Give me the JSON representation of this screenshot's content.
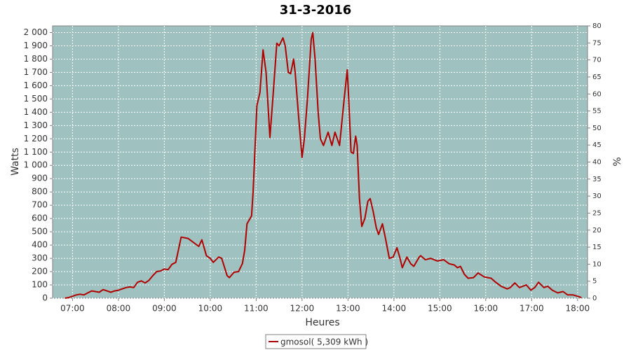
{
  "chart_data": {
    "type": "line",
    "title": "31-3-2016",
    "x_label": "Heures",
    "y_label": "Watts",
    "y2_label": "%",
    "grid": true,
    "xlim": [
      "06:34",
      "18:13"
    ],
    "xticks": [
      "07:00",
      "08:00",
      "09:00",
      "10:00",
      "11:00",
      "12:00",
      "13:00",
      "14:00",
      "15:00",
      "16:00",
      "17:00",
      "18:00"
    ],
    "ylim": [
      0,
      2050
    ],
    "yticks": [
      0,
      100,
      200,
      300,
      400,
      500,
      600,
      700,
      800,
      900,
      {
        "value": 1000,
        "label": "1 000"
      },
      {
        "value": 1100,
        "label": "1 100"
      },
      {
        "value": 1200,
        "label": "1 200"
      },
      {
        "value": 1300,
        "label": "1 300"
      },
      {
        "value": 1400,
        "label": "1 400"
      },
      {
        "value": 1500,
        "label": "1 500"
      },
      {
        "value": 1600,
        "label": "1 600"
      },
      {
        "value": 1700,
        "label": "1 700"
      },
      {
        "value": 1800,
        "label": "1 800"
      },
      {
        "value": 1900,
        "label": "1 900"
      },
      {
        "value": 2000,
        "label": "2 000"
      }
    ],
    "y2lim": [
      0,
      80
    ],
    "y2ticks": [
      0,
      5,
      10,
      15,
      20,
      25,
      30,
      35,
      40,
      45,
      50,
      55,
      60,
      65,
      70,
      75,
      80
    ],
    "x": [
      "06:50",
      "06:55",
      "07:00",
      "07:05",
      "07:10",
      "07:15",
      "07:20",
      "07:25",
      "07:30",
      "07:35",
      "07:40",
      "07:45",
      "07:50",
      "07:55",
      "08:00",
      "08:05",
      "08:10",
      "08:15",
      "08:20",
      "08:25",
      "08:30",
      "08:35",
      "08:40",
      "08:45",
      "08:50",
      "08:55",
      "09:00",
      "09:05",
      "09:10",
      "09:15",
      "09:22",
      "09:31",
      "09:45",
      "09:49",
      "09:55",
      "10:00",
      "10:04",
      "10:11",
      "10:15",
      "10:22",
      "10:25",
      "10:31",
      "10:37",
      "10:42",
      "10:45",
      "10:48",
      "10:54",
      "10:56",
      "11:01",
      "11:05",
      "11:09",
      "11:13",
      "11:18",
      "11:23",
      "11:27",
      "11:30",
      "11:35",
      "11:38",
      "11:42",
      "11:45",
      "11:49",
      "11:51",
      "11:55",
      "12:00",
      "12:03",
      "12:07",
      "12:12",
      "12:14",
      "12:17",
      "12:21",
      "12:24",
      "12:28",
      "12:31",
      "12:34",
      "12:39",
      "12:43",
      "12:49",
      "12:55",
      "12:59",
      "13:01",
      "13:04",
      "13:07",
      "13:10",
      "13:12",
      "13:15",
      "13:18",
      "13:22",
      "13:26",
      "13:29",
      "13:33",
      "13:37",
      "13:40",
      "13:45",
      "13:49",
      "13:54",
      "13:59",
      "14:04",
      "14:08",
      "14:11",
      "14:17",
      "14:22",
      "14:26",
      "14:33",
      "14:35",
      "14:41",
      "14:48",
      "14:57",
      "15:05",
      "15:12",
      "15:19",
      "15:23",
      "15:27",
      "15:32",
      "15:37",
      "15:44",
      "15:50",
      "15:58",
      "16:07",
      "16:13",
      "16:20",
      "16:28",
      "16:32",
      "16:38",
      "16:44",
      "16:53",
      "16:59",
      "17:04",
      "17:09",
      "17:16",
      "17:21",
      "17:27",
      "17:34",
      "17:41",
      "17:47",
      "17:54",
      "18:00",
      "18:05"
    ],
    "series": [
      {
        "name": "gmosol( 5,309 kWh )",
        "color": "#b00000",
        "values": [
          0,
          5,
          15,
          25,
          30,
          25,
          40,
          55,
          50,
          45,
          65,
          55,
          45,
          55,
          60,
          70,
          80,
          85,
          80,
          120,
          130,
          115,
          135,
          170,
          200,
          205,
          220,
          215,
          255,
          270,
          460,
          450,
          390,
          440,
          320,
          300,
          270,
          310,
          300,
          170,
          155,
          195,
          200,
          260,
          360,
          560,
          620,
          800,
          1450,
          1550,
          1870,
          1700,
          1210,
          1600,
          1920,
          1900,
          1960,
          1900,
          1700,
          1690,
          1800,
          1700,
          1400,
          1060,
          1200,
          1500,
          1950,
          2000,
          1800,
          1400,
          1200,
          1150,
          1200,
          1250,
          1150,
          1250,
          1150,
          1500,
          1720,
          1500,
          1100,
          1090,
          1220,
          1150,
          750,
          540,
          600,
          730,
          750,
          650,
          530,
          480,
          560,
          450,
          300,
          310,
          380,
          300,
          230,
          310,
          260,
          240,
          310,
          320,
          290,
          300,
          280,
          290,
          260,
          250,
          230,
          240,
          180,
          150,
          155,
          190,
          160,
          150,
          120,
          90,
          70,
          80,
          115,
          80,
          100,
          60,
          80,
          120,
          80,
          90,
          60,
          40,
          50,
          25,
          25,
          15,
          5
        ]
      }
    ]
  }
}
